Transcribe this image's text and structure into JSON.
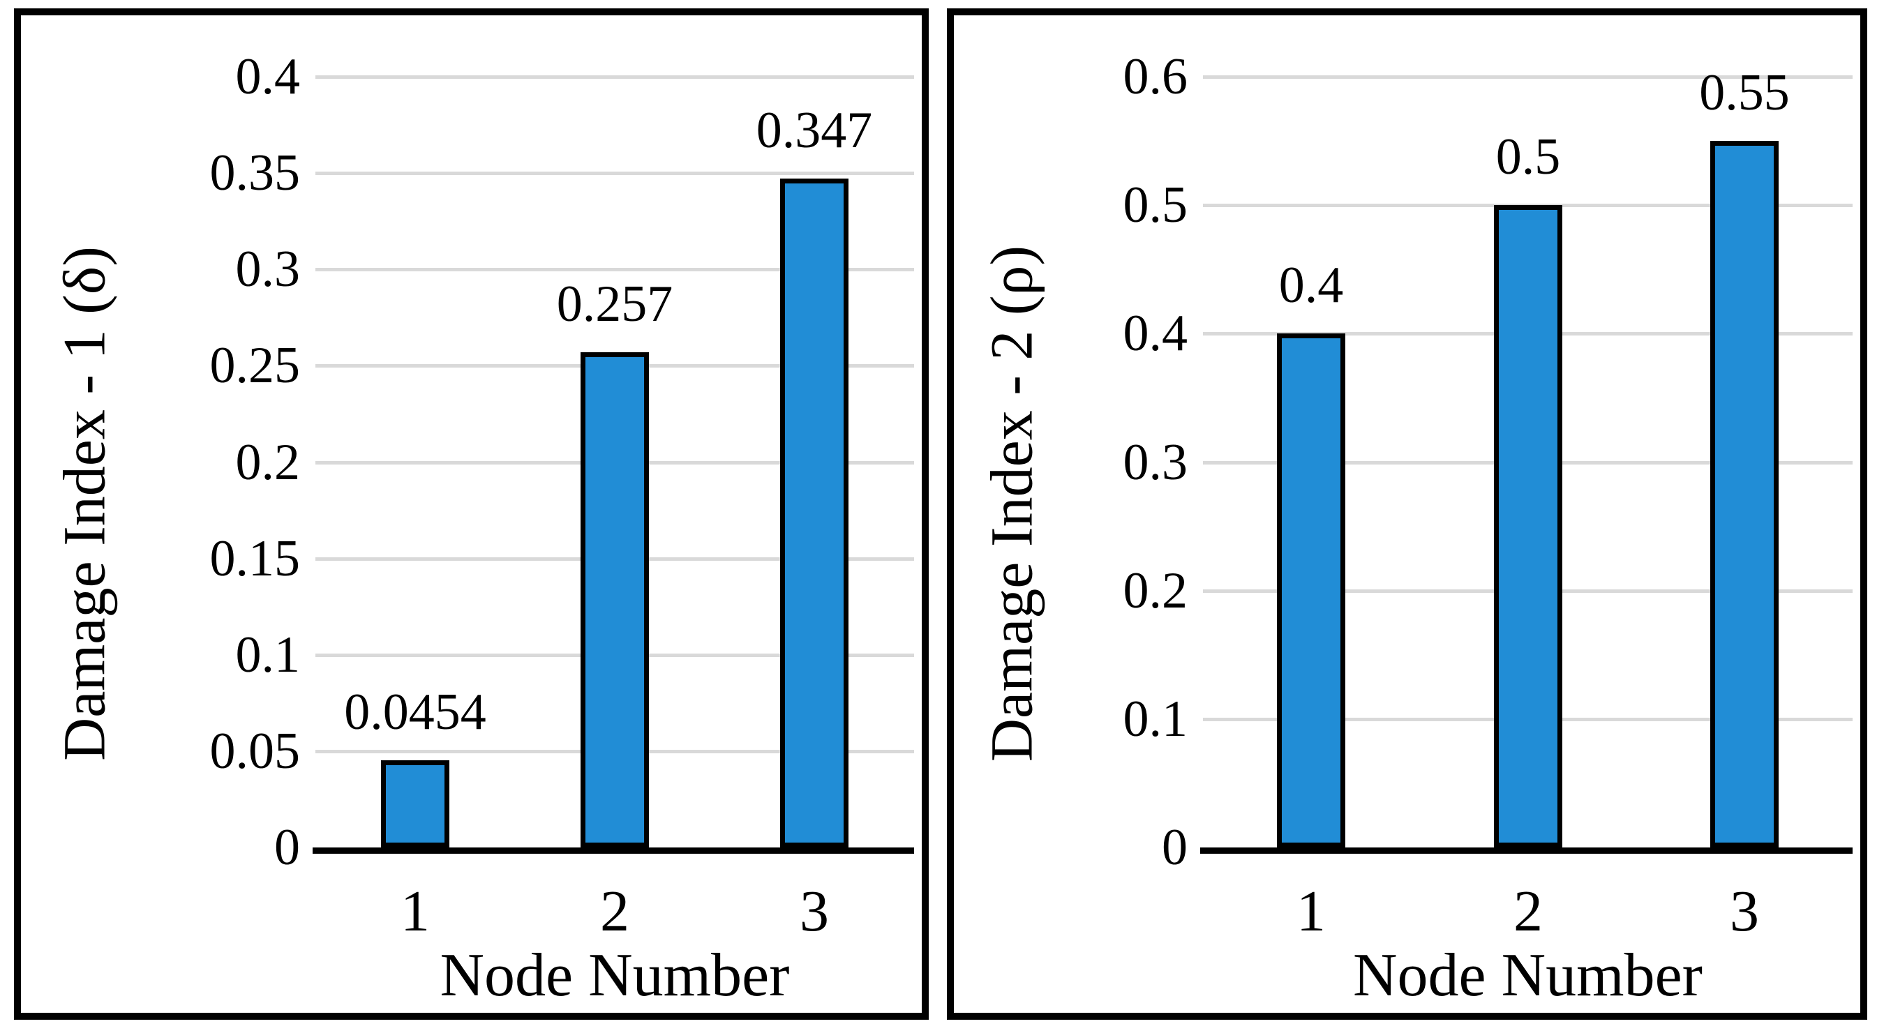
{
  "figure": {
    "description": "Two side-by-side bar charts of damage indices per node",
    "background": "#FFFFFF"
  },
  "colors": {
    "bar_fill": "#218DD6",
    "bar_border": "#000000",
    "gridline": "#D9D9D9",
    "axis_line": "#000000",
    "panel_border": "#000000",
    "text": "#000000"
  },
  "chart_data": [
    {
      "type": "bar",
      "title": "",
      "ylabel": "Damage Index - 1 (δ)",
      "xlabel": "Node Number",
      "categories": [
        "1",
        "2",
        "3"
      ],
      "values": [
        0.0454,
        0.257,
        0.347
      ],
      "bar_labels": [
        "0.0454",
        "0.257",
        "0.347"
      ],
      "ylim": [
        0,
        0.4
      ],
      "yticks": [
        0,
        0.05,
        0.1,
        0.15,
        0.2,
        0.25,
        0.3,
        0.35,
        0.4
      ],
      "ytick_labels": [
        "0",
        "0.05",
        "0.1",
        "0.15",
        "0.2",
        "0.25",
        "0.3",
        "0.35",
        "0.4"
      ],
      "grid": "horizontal",
      "legend": "none"
    },
    {
      "type": "bar",
      "title": "",
      "ylabel": "Damage Index - 2 (ρ)",
      "xlabel": "Node Number",
      "categories": [
        "1",
        "2",
        "3"
      ],
      "values": [
        0.4,
        0.5,
        0.55
      ],
      "bar_labels": [
        "0.4",
        "0.5",
        "0.55"
      ],
      "ylim": [
        0,
        0.6
      ],
      "yticks": [
        0,
        0.1,
        0.2,
        0.3,
        0.4,
        0.5,
        0.6
      ],
      "ytick_labels": [
        "0",
        "0.1",
        "0.2",
        "0.3",
        "0.4",
        "0.5",
        "0.6"
      ],
      "grid": "horizontal",
      "legend": "none"
    }
  ]
}
